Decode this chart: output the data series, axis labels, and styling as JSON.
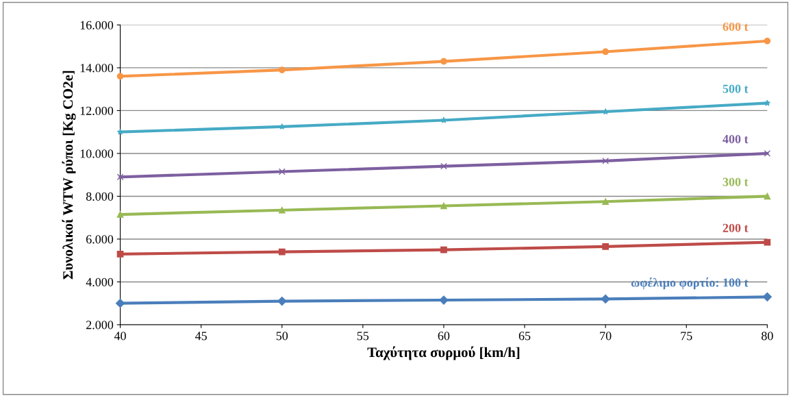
{
  "chart_data": {
    "type": "line",
    "xlabel": "Ταχύτητα συρμού [km/h]",
    "ylabel": "Συνολικοί WTW ρύποι [Kg CO2e]",
    "x": [
      40,
      50,
      60,
      70,
      80
    ],
    "series": [
      {
        "name": "ωφέλιμο φορτίο: 100 t",
        "color": "#4a7ebb",
        "marker": "diamond",
        "values": [
          3000,
          3100,
          3150,
          3200,
          3300
        ]
      },
      {
        "name": "200 t",
        "color": "#be4b48",
        "marker": "square",
        "values": [
          5300,
          5400,
          5500,
          5650,
          5850
        ]
      },
      {
        "name": "300 t",
        "color": "#98b954",
        "marker": "triangle",
        "values": [
          7150,
          7350,
          7550,
          7750,
          8000
        ]
      },
      {
        "name": "400 t",
        "color": "#7d5fa0",
        "marker": "cross",
        "values": [
          8900,
          9150,
          9400,
          9650,
          10000
        ]
      },
      {
        "name": "500 t",
        "color": "#46aac5",
        "marker": "star",
        "values": [
          11000,
          11250,
          11550,
          11950,
          12350
        ]
      },
      {
        "name": "600 t",
        "color": "#f79646",
        "marker": "circle",
        "values": [
          13600,
          13900,
          14300,
          14750,
          15250
        ]
      }
    ],
    "xlim": [
      40,
      80
    ],
    "xticks": [
      40,
      45,
      50,
      55,
      60,
      65,
      70,
      75,
      80
    ],
    "ylim": [
      2000,
      16000
    ],
    "yticks": [
      {
        "value": 2000,
        "label": "2.000"
      },
      {
        "value": 4000,
        "label": "4.000"
      },
      {
        "value": 6000,
        "label": "6.000"
      },
      {
        "value": 8000,
        "label": "8.000"
      },
      {
        "value": 10000,
        "label": "10.000"
      },
      {
        "value": 12000,
        "label": "12.000"
      },
      {
        "value": 14000,
        "label": "14.000"
      },
      {
        "value": 16000,
        "label": "16.000"
      }
    ],
    "grid": "y",
    "legend": false,
    "line_style": "solid"
  }
}
